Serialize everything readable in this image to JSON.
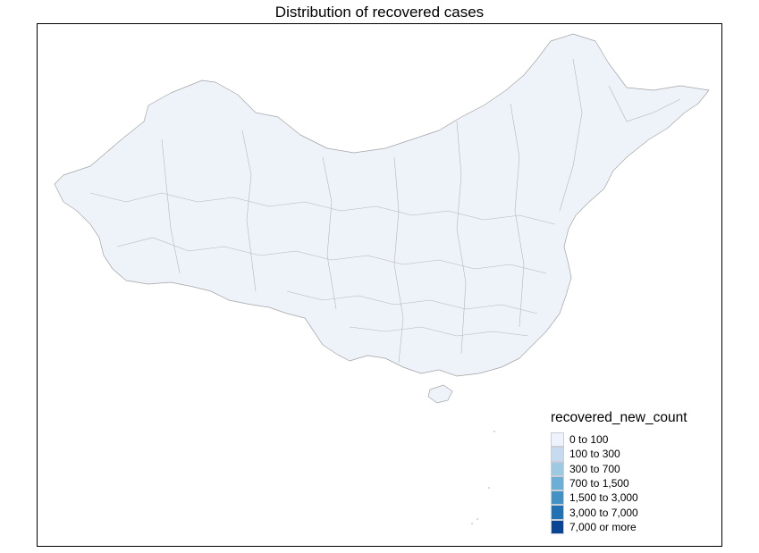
{
  "map": {
    "title": "Distribution of  recovered cases",
    "fill_color": "#eef3fa",
    "border_color": "#a3a3a3",
    "legend": {
      "title": "recovered_new_count",
      "items": [
        {
          "label": "0 to 100",
          "color": "#eff3ff"
        },
        {
          "label": "100 to 300",
          "color": "#c6dbef"
        },
        {
          "label": "300 to 700",
          "color": "#9ecae1"
        },
        {
          "label": "700 to 1,500",
          "color": "#6baed6"
        },
        {
          "label": "1,500 to 3,000",
          "color": "#4292c6"
        },
        {
          "label": "3,000 to 7,000",
          "color": "#2171b5"
        },
        {
          "label": "7,000 or more",
          "color": "#084594"
        }
      ]
    }
  }
}
